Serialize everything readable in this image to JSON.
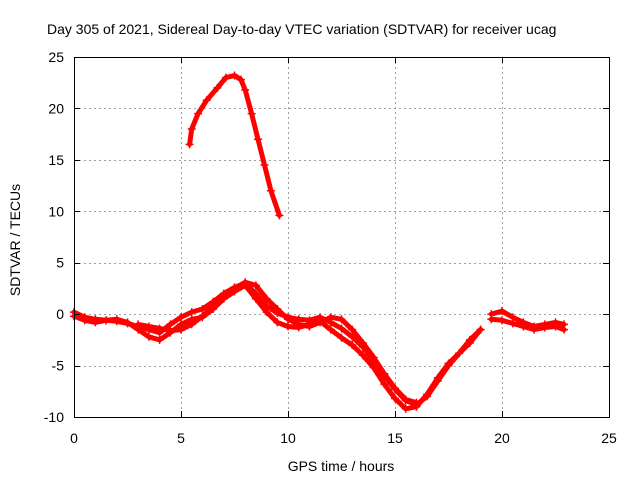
{
  "chart_data": {
    "type": "scatter",
    "title": "Day 305 of 2021, Sidereal Day-to-day VTEC variation (SDTVAR) for receiver ucag",
    "xlabel": "GPS time / hours",
    "ylabel": "SDTVAR / TECUs",
    "xlim": [
      0,
      25
    ],
    "ylim": [
      -10,
      25
    ],
    "xticks": [
      0,
      5,
      10,
      15,
      20,
      25
    ],
    "xtick_labels": [
      "0",
      "5",
      "10",
      "15",
      "20",
      "25"
    ],
    "yticks": [
      -10,
      -5,
      0,
      5,
      10,
      15,
      20,
      25
    ],
    "ytick_labels": [
      "-10",
      "-5",
      "0",
      "5",
      "10",
      "15",
      "20",
      "25"
    ],
    "grid": true,
    "marker": "+",
    "color": "#ff0000",
    "series": [
      {
        "name": "arc-high",
        "x": [
          5.4,
          5.5,
          5.8,
          6.2,
          6.7,
          7.1,
          7.5,
          7.8,
          8.0,
          8.3,
          8.6,
          8.9,
          9.2,
          9.6
        ],
        "y": [
          16.5,
          18.0,
          19.5,
          20.8,
          22.0,
          23.0,
          23.2,
          22.8,
          21.8,
          19.5,
          17.0,
          14.5,
          12.0,
          9.6
        ]
      },
      {
        "name": "arc-a",
        "x": [
          0.0,
          0.5,
          1.0,
          1.5,
          2.0,
          2.5,
          3.0,
          3.5,
          4.0,
          4.5,
          5.0,
          5.5,
          6.0,
          6.5,
          7.0,
          7.5,
          8.0,
          8.5,
          9.0,
          9.5,
          10.0,
          10.5,
          11.0,
          11.5,
          12.0,
          12.5,
          13.0,
          13.5,
          14.0,
          14.5,
          15.0,
          15.5,
          16.0,
          16.5,
          17.0,
          17.5,
          18.0,
          18.5,
          19.0
        ],
        "y": [
          0.2,
          -0.3,
          -0.5,
          -0.6,
          -0.7,
          -0.9,
          -1.2,
          -1.5,
          -1.8,
          -1.0,
          -0.3,
          0.2,
          0.5,
          1.2,
          2.0,
          2.6,
          3.0,
          2.0,
          0.8,
          0.1,
          -0.3,
          -0.5,
          -0.6,
          -0.3,
          -0.8,
          -1.4,
          -2.2,
          -3.2,
          -4.5,
          -6.0,
          -7.3,
          -8.4,
          -8.8,
          -8.0,
          -6.5,
          -5.0,
          -3.8,
          -2.8,
          -1.5
        ]
      },
      {
        "name": "arc-b",
        "x": [
          0.0,
          0.5,
          1.0,
          1.5,
          2.0,
          2.5,
          3.0,
          3.5,
          4.0,
          4.5,
          5.0,
          5.5,
          6.0,
          6.5,
          7.0,
          7.5,
          8.0,
          8.5,
          9.0,
          9.5,
          10.0,
          10.5,
          11.0,
          11.5,
          12.0,
          12.5,
          13.0,
          13.5,
          14.0,
          14.5,
          15.0,
          15.5,
          16.0,
          16.5,
          17.0,
          17.5,
          18.0,
          18.5,
          19.0
        ],
        "y": [
          -0.2,
          -0.6,
          -0.8,
          -0.6,
          -0.5,
          -0.8,
          -1.5,
          -2.2,
          -2.5,
          -1.8,
          -1.0,
          -0.5,
          -0.3,
          0.5,
          1.5,
          2.2,
          2.8,
          1.5,
          0.2,
          -0.8,
          -1.2,
          -1.3,
          -1.0,
          -0.7,
          -1.5,
          -2.3,
          -3.0,
          -4.0,
          -5.2,
          -6.8,
          -8.2,
          -9.2,
          -9.0,
          -7.8,
          -6.2,
          -4.8,
          -3.8,
          -2.5,
          -1.5
        ]
      },
      {
        "name": "arc-c",
        "x": [
          3.0,
          3.5,
          4.0,
          4.5,
          5.0,
          5.5,
          6.0,
          6.5,
          7.0,
          7.5,
          8.0,
          8.5,
          9.0,
          9.5,
          10.0,
          10.5,
          11.0,
          11.5,
          12.0,
          12.5,
          13.0,
          13.5,
          14.0,
          14.5,
          15.0,
          15.5,
          16.0
        ],
        "y": [
          -1.0,
          -1.2,
          -1.4,
          -1.6,
          -1.5,
          -1.0,
          -0.2,
          0.8,
          1.8,
          2.5,
          3.1,
          2.8,
          1.5,
          0.5,
          -0.5,
          -1.0,
          -1.2,
          -0.8,
          -0.3,
          -0.5,
          -1.5,
          -2.8,
          -4.2,
          -5.8,
          -7.2,
          -8.3,
          -8.6
        ]
      },
      {
        "name": "arc-late",
        "x": [
          19.5,
          20.0,
          20.5,
          21.0,
          21.5,
          22.0,
          22.5,
          22.9
        ],
        "y": [
          0.0,
          0.3,
          -0.3,
          -0.8,
          -1.2,
          -1.0,
          -0.8,
          -1.0
        ]
      },
      {
        "name": "arc-late-2",
        "x": [
          19.5,
          20.0,
          20.5,
          21.0,
          21.5,
          22.0,
          22.5,
          22.9
        ],
        "y": [
          -0.5,
          -0.6,
          -0.9,
          -1.2,
          -1.5,
          -1.3,
          -1.2,
          -1.5
        ]
      }
    ]
  }
}
